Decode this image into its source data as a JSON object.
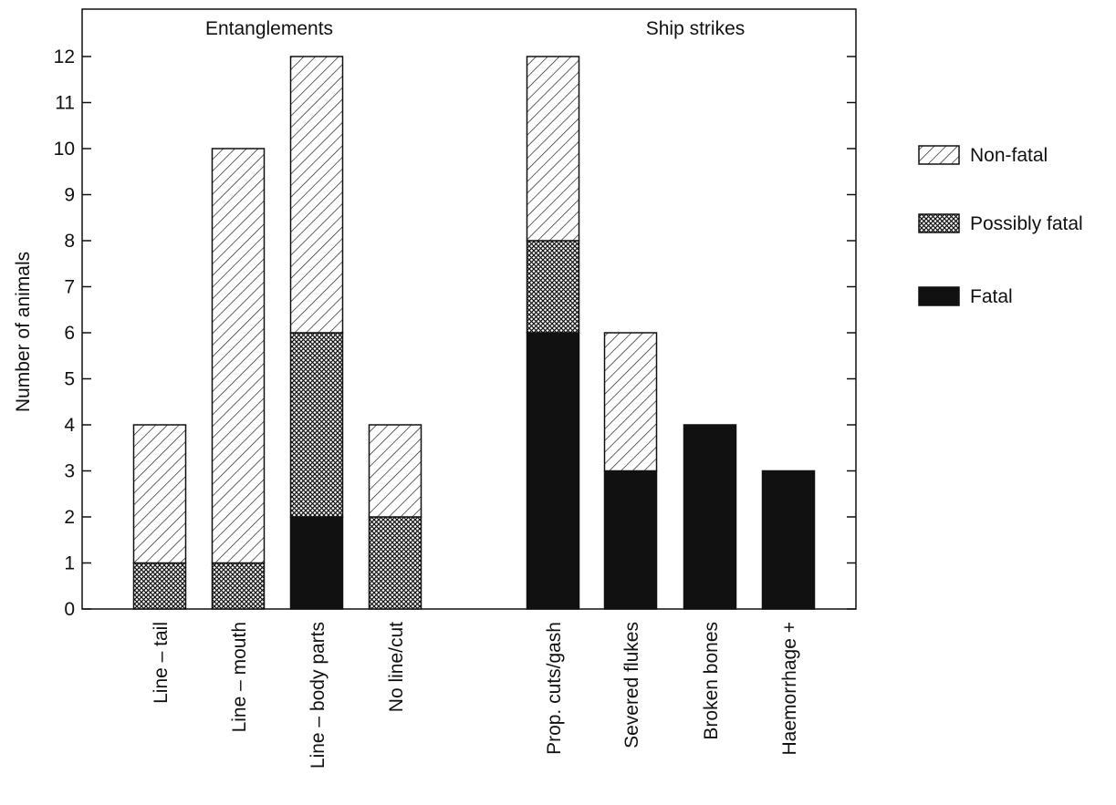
{
  "chart_data": {
    "type": "bar",
    "stacked": true,
    "ylabel": "Number of animals",
    "xlabel": "",
    "ylim": [
      0,
      12
    ],
    "yticks": [
      0,
      1,
      2,
      3,
      4,
      5,
      6,
      7,
      8,
      9,
      10,
      11,
      12
    ],
    "groups": [
      {
        "label": "Entanglements",
        "categories": [
          "Line – tail",
          "Line – mouth",
          "Line – body parts",
          "No line/cut"
        ]
      },
      {
        "label": "Ship strikes",
        "categories": [
          "Prop. cuts/gash",
          "Severed flukes",
          "Broken bones",
          "Haemorrhage +"
        ]
      }
    ],
    "categories": [
      "Line – tail",
      "Line – mouth",
      "Line – body parts",
      "No line/cut",
      "Prop. cuts/gash",
      "Severed flukes",
      "Broken bones",
      "Haemorrhage +"
    ],
    "series": [
      {
        "name": "Fatal",
        "pattern": "solid",
        "values": [
          0,
          0,
          2,
          0,
          6,
          3,
          4,
          3
        ]
      },
      {
        "name": "Possibly fatal",
        "pattern": "crosshatch",
        "values": [
          1,
          1,
          4,
          2,
          2,
          0,
          0,
          0
        ]
      },
      {
        "name": "Non-fatal",
        "pattern": "diagonal",
        "values": [
          3,
          9,
          6,
          2,
          4,
          3,
          0,
          0
        ]
      }
    ],
    "legend": {
      "placement": "right",
      "order": [
        "Non-fatal",
        "Possibly fatal",
        "Fatal"
      ]
    },
    "grid": false
  }
}
